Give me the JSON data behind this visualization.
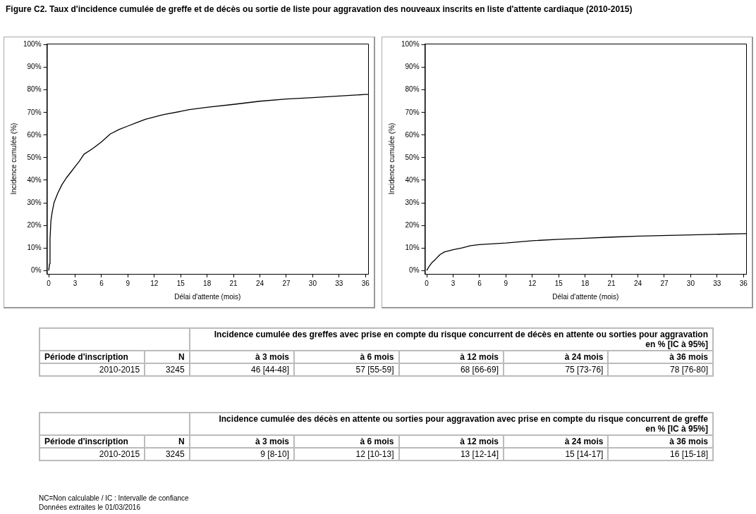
{
  "chart_data": [
    {
      "type": "line",
      "title": "Figure C2. Taux d'incidence cumulée de greffe et de décès ou sortie de liste pour aggravation des nouveaux inscrits en liste d'attente cardiaque (2010-2015)",
      "xlabel": "Délai d'attente (mois)",
      "ylabel": "Incidence cumulée (%)",
      "xlim": [
        -0.2,
        36.3
      ],
      "ylim": [
        -1.5,
        100.5
      ],
      "xticks": [
        0,
        3,
        6,
        9,
        12,
        15,
        18,
        21,
        24,
        27,
        30,
        33,
        36
      ],
      "yticks": [
        {
          "value": 0,
          "label": "0%"
        },
        {
          "value": 10,
          "label": "10%"
        },
        {
          "value": 20,
          "label": "20%"
        },
        {
          "value": 30,
          "label": "30%"
        },
        {
          "value": 40,
          "label": "40%"
        },
        {
          "value": 50,
          "label": "50%"
        },
        {
          "value": 60,
          "label": "60%"
        },
        {
          "value": 70,
          "label": "70%"
        },
        {
          "value": 80,
          "label": "80%"
        },
        {
          "value": 90,
          "label": "90%"
        },
        {
          "value": 100,
          "label": "100%"
        }
      ],
      "marker": "none",
      "legend": false,
      "annotations": [
        "NC=Non calculable / IC : Intervalle de confiance",
        "Données extraites le 01/03/2016"
      ],
      "series": [
        {
          "color": "#000000",
          "x": [
            0,
            0.1,
            0.15,
            0.25,
            0.4,
            0.6,
            1,
            1.5,
            2,
            2.5,
            3,
            3.5,
            4,
            5,
            6,
            7,
            8,
            9,
            10,
            11,
            12,
            13,
            15,
            16,
            18,
            21,
            24,
            27,
            30,
            33,
            36,
            36.3
          ],
          "values": [
            0,
            3,
            14,
            22,
            26,
            30,
            34,
            38,
            41,
            43.5,
            46,
            48.5,
            51.5,
            54,
            57,
            60.5,
            62.5,
            64,
            65.5,
            67,
            68,
            69,
            70.5,
            71.3,
            72.3,
            73.6,
            75,
            76,
            76.6,
            77.3,
            78,
            78
          ]
        }
      ]
    },
    {
      "type": "line",
      "xlabel": "Délai d'attente (mois)",
      "ylabel": "Incidence cumulée (%)",
      "xlim": [
        -0.2,
        36.3
      ],
      "ylim": [
        -1.5,
        100.5
      ],
      "xticks": [
        0,
        3,
        6,
        9,
        12,
        15,
        18,
        21,
        24,
        27,
        30,
        33,
        36
      ],
      "yticks": [
        {
          "value": 0,
          "label": "0%"
        },
        {
          "value": 10,
          "label": "10%"
        },
        {
          "value": 20,
          "label": "20%"
        },
        {
          "value": 30,
          "label": "30%"
        },
        {
          "value": 40,
          "label": "40%"
        },
        {
          "value": 50,
          "label": "50%"
        },
        {
          "value": 60,
          "label": "60%"
        },
        {
          "value": 70,
          "label": "70%"
        },
        {
          "value": 80,
          "label": "80%"
        },
        {
          "value": 90,
          "label": "90%"
        },
        {
          "value": 100,
          "label": "100%"
        }
      ],
      "marker": "none",
      "legend": false,
      "series": [
        {
          "color": "#000000",
          "x": [
            0,
            0.3,
            0.6,
            1,
            1.5,
            2,
            3,
            4,
            5,
            6,
            9,
            12,
            15,
            18,
            21,
            24,
            30,
            36,
            36.3
          ],
          "values": [
            0,
            2,
            3.5,
            5,
            7,
            8.2,
            9.2,
            10,
            11,
            11.5,
            12.2,
            13.2,
            13.8,
            14.3,
            14.8,
            15.2,
            15.8,
            16.3,
            16.3
          ]
        }
      ]
    },
    {
      "type": "other",
      "title": "Incidence cumulée des greffes avec prise en compte du risque concurrent de décès en attente ou sorties pour aggravation",
      "subtitle": "en % [IC à 95%]",
      "categories": [
        "Période d'inscription",
        "N",
        "à 3 mois",
        "à 6 mois",
        "à 12 mois",
        "à 24 mois",
        "à 36 mois"
      ],
      "annotations": [
        "2010-2015",
        "3245",
        "46 [44-48]",
        "57 [55-59]",
        "68 [66-69]",
        "75 [73-76]",
        "78 [76-80]"
      ]
    },
    {
      "type": "other",
      "title": "Incidence cumulée des décès en attente ou sorties pour aggravation avec prise en compte du risque concurrent de greffe",
      "subtitle": "en % [IC à 95%]",
      "categories": [
        "Période d'inscription",
        "N",
        "à 3 mois",
        "à 6 mois",
        "à 12 mois",
        "à 24 mois",
        "à 36 mois"
      ],
      "annotations": [
        "2010-2015",
        "3245",
        "9 [8-10]",
        "12 [10-13]",
        "13 [12-14]",
        "15 [14-17]",
        "16 [15-18]"
      ]
    }
  ]
}
